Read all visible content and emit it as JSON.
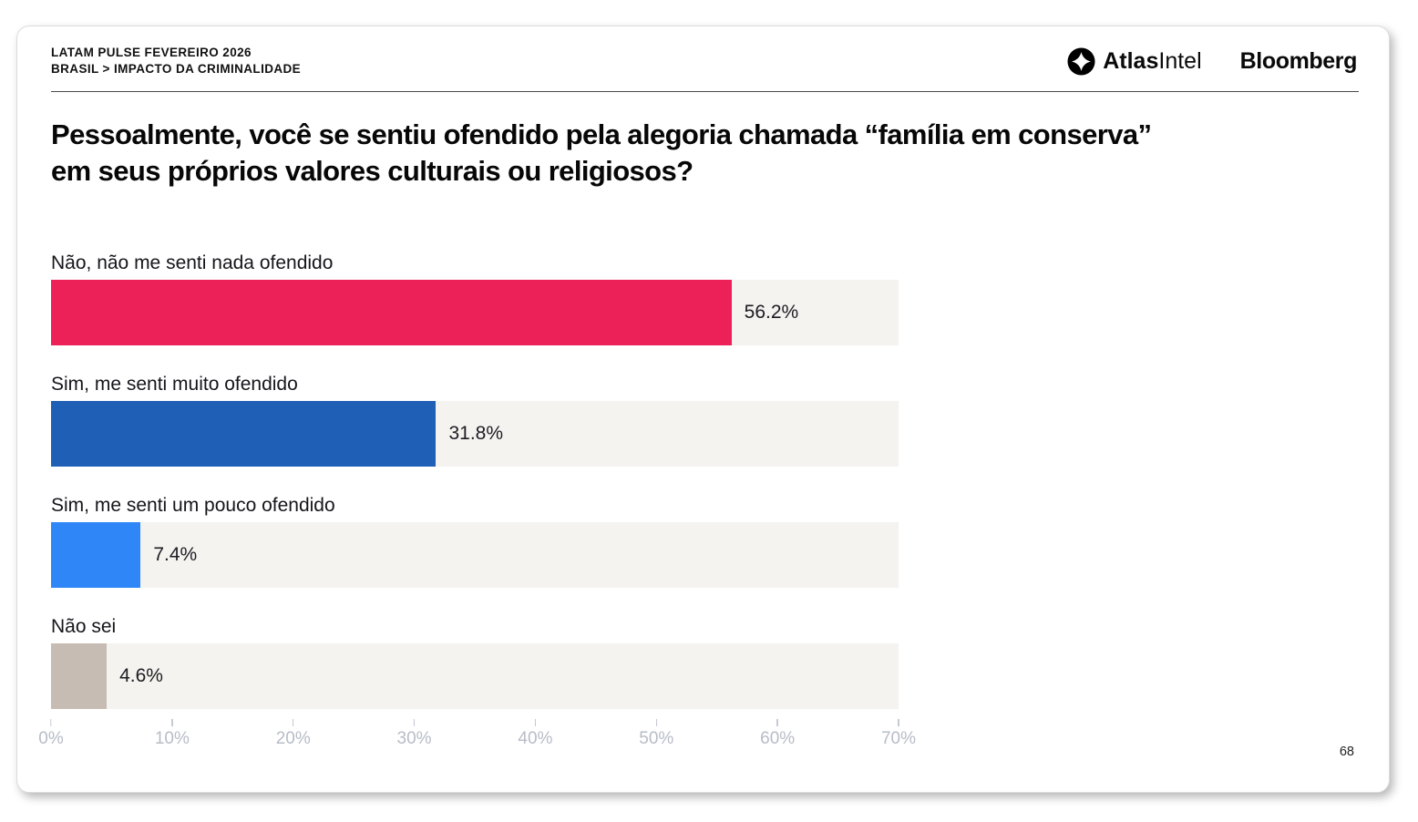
{
  "header": {
    "kicker_line1": "LATAM PULSE FEVEREIRO 2026",
    "kicker_line2": "BRASIL > IMPACTO DA CRIMINALIDADE",
    "atlas_logo_bold": "Atlas",
    "atlas_logo_regular": "Intel",
    "bloomberg_logo": "Bloomberg"
  },
  "question": "Pessoalmente, você se sentiu ofendido pela alegoria chamada “família em conserva” em seus próprios valores culturais ou religiosos?",
  "page_number": "68",
  "chart_data": {
    "type": "bar",
    "orientation": "horizontal",
    "title": "",
    "xlabel": "",
    "ylabel": "",
    "categories": [
      "Não, não me senti nada ofendido",
      "Sim, me senti muito ofendido",
      "Sim, me senti um pouco ofendido",
      "Não sei"
    ],
    "values": [
      56.2,
      31.8,
      7.4,
      4.6
    ],
    "value_labels": [
      "56.2%",
      "31.8%",
      "7.4%",
      "4.6%"
    ],
    "bar_colors": [
      "#eb2158",
      "#205fb6",
      "#2f87f7",
      "#c7bcb4"
    ],
    "track_color": "#f4f3f0",
    "xlim": [
      0,
      70
    ],
    "x_ticks": [
      "0%",
      "10%",
      "20%",
      "30%",
      "40%",
      "50%",
      "60%",
      "70%"
    ],
    "grid": false,
    "legend": false
  }
}
